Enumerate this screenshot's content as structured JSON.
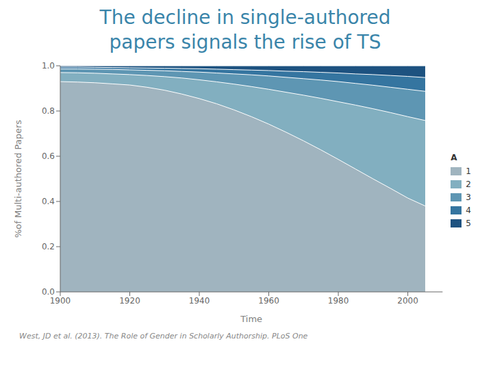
{
  "chart_data": {
    "type": "area",
    "title": "The decline in single-authored",
    "subtitle": "papers signals the rise of TS",
    "xlabel": "Time",
    "ylabel": "%of Multi-authored Papers",
    "annotations": [
      "West, JD et al. (2013). The Role of Gender in Scholarly Authorship. PLoS One"
    ],
    "legend_title": "A",
    "legend": "right",
    "grid": false,
    "stacked": false,
    "xlim": [
      1900,
      2010
    ],
    "ylim": [
      0.0,
      1.0
    ],
    "xticks": [
      1900,
      1920,
      1940,
      1960,
      1980,
      2000
    ],
    "yticks": [
      {
        "value": 0.0,
        "label": "0.0"
      },
      0.2,
      0.4,
      0.6,
      0.8,
      {
        "value": 1.0,
        "label": "1.0"
      }
    ],
    "x": [
      1900,
      1905,
      1910,
      1915,
      1920,
      1925,
      1930,
      1935,
      1940,
      1945,
      1950,
      1955,
      1960,
      1965,
      1970,
      1975,
      1980,
      1985,
      1990,
      1995,
      2000,
      2005
    ],
    "series": [
      {
        "name": "1",
        "color": "#a0b4bf",
        "values": [
          0.93,
          0.928,
          0.925,
          0.92,
          0.915,
          0.905,
          0.892,
          0.875,
          0.855,
          0.832,
          0.805,
          0.775,
          0.742,
          0.706,
          0.668,
          0.628,
          0.586,
          0.543,
          0.5,
          0.458,
          0.415,
          0.38
        ]
      },
      {
        "name": "2",
        "color": "#82afc0",
        "values": [
          0.97,
          0.969,
          0.967,
          0.964,
          0.961,
          0.957,
          0.952,
          0.946,
          0.938,
          0.929,
          0.919,
          0.908,
          0.896,
          0.883,
          0.87,
          0.856,
          0.841,
          0.826,
          0.81,
          0.793,
          0.775,
          0.758
        ]
      },
      {
        "name": "3",
        "color": "#5e96b3",
        "values": [
          0.986,
          0.986,
          0.985,
          0.984,
          0.982,
          0.98,
          0.978,
          0.975,
          0.972,
          0.968,
          0.964,
          0.96,
          0.955,
          0.949,
          0.943,
          0.937,
          0.93,
          0.922,
          0.914,
          0.905,
          0.896,
          0.887
        ]
      },
      {
        "name": "4",
        "color": "#3575a0",
        "values": [
          0.994,
          0.994,
          0.993,
          0.992,
          0.991,
          0.99,
          0.989,
          0.988,
          0.987,
          0.985,
          0.983,
          0.981,
          0.979,
          0.976,
          0.974,
          0.971,
          0.968,
          0.964,
          0.961,
          0.957,
          0.953,
          0.948
        ]
      },
      {
        "name": "5",
        "color": "#1d5280",
        "values": [
          1.0,
          1.0,
          1.0,
          1.0,
          1.0,
          1.0,
          1.0,
          1.0,
          1.0,
          1.0,
          1.0,
          1.0,
          1.0,
          1.0,
          1.0,
          1.0,
          1.0,
          1.0,
          1.0,
          1.0,
          1.0,
          1.0
        ]
      }
    ]
  }
}
